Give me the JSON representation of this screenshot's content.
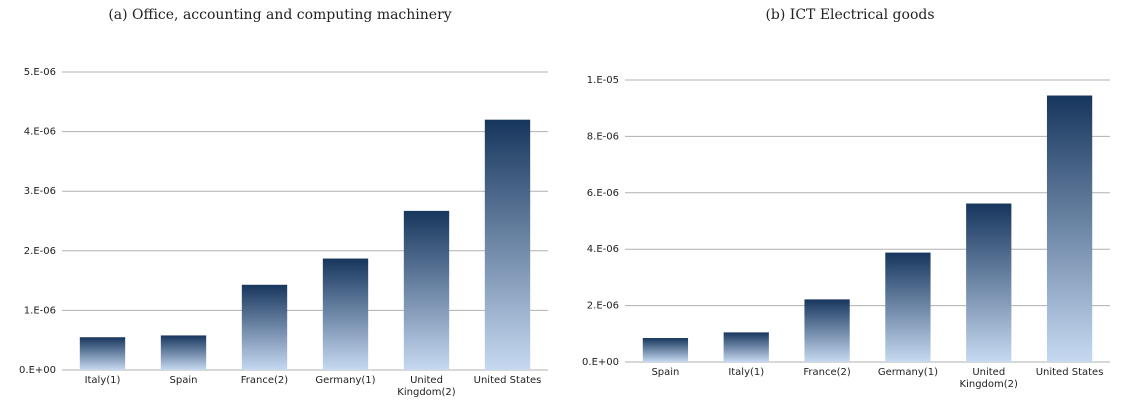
{
  "chart_data": [
    {
      "type": "bar",
      "title": "(a) Office, accounting and computing machinery",
      "categories": [
        "Italy(1)",
        "Spain",
        "France(2)",
        "Germany(1)",
        "United Kingdom(2)",
        "United States"
      ],
      "values": [
        5.5e-07,
        5.8e-07,
        1.43e-06,
        1.87e-06,
        2.67e-06,
        4.2e-06
      ],
      "gradient": [
        "#17365d",
        "#c6d9f1"
      ],
      "ylim": [
        0,
        5e-06
      ],
      "yticks": [
        {
          "value": 0,
          "label": "0.E+00"
        },
        {
          "value": 1e-06,
          "label": "1.E-06"
        },
        {
          "value": 2e-06,
          "label": "2.E-06"
        },
        {
          "value": 3e-06,
          "label": "3.E-06"
        },
        {
          "value": 4e-06,
          "label": "4.E-06"
        },
        {
          "value": 5e-06,
          "label": "5.E-06"
        }
      ],
      "grid": true
    },
    {
      "type": "bar",
      "title": "(b) ICT Electrical goods",
      "categories": [
        "Spain",
        "Italy(1)",
        "France(2)",
        "Germany(1)",
        "United Kingdom(2)",
        "United States"
      ],
      "values": [
        8.5e-07,
        1.05e-06,
        2.22e-06,
        3.88e-06,
        5.62e-06,
        9.45e-06
      ],
      "gradient": [
        "#17365d",
        "#c6d9f1"
      ],
      "ylim": [
        0,
        1e-05
      ],
      "yticks": [
        {
          "value": 0,
          "label": "0.E+00"
        },
        {
          "value": 2e-06,
          "label": "2.E-06"
        },
        {
          "value": 4e-06,
          "label": "4.E-06"
        },
        {
          "value": 6e-06,
          "label": "6.E-06"
        },
        {
          "value": 8e-06,
          "label": "8.E-06"
        },
        {
          "value": 1e-05,
          "label": "1.E-05"
        }
      ],
      "grid": true
    }
  ]
}
